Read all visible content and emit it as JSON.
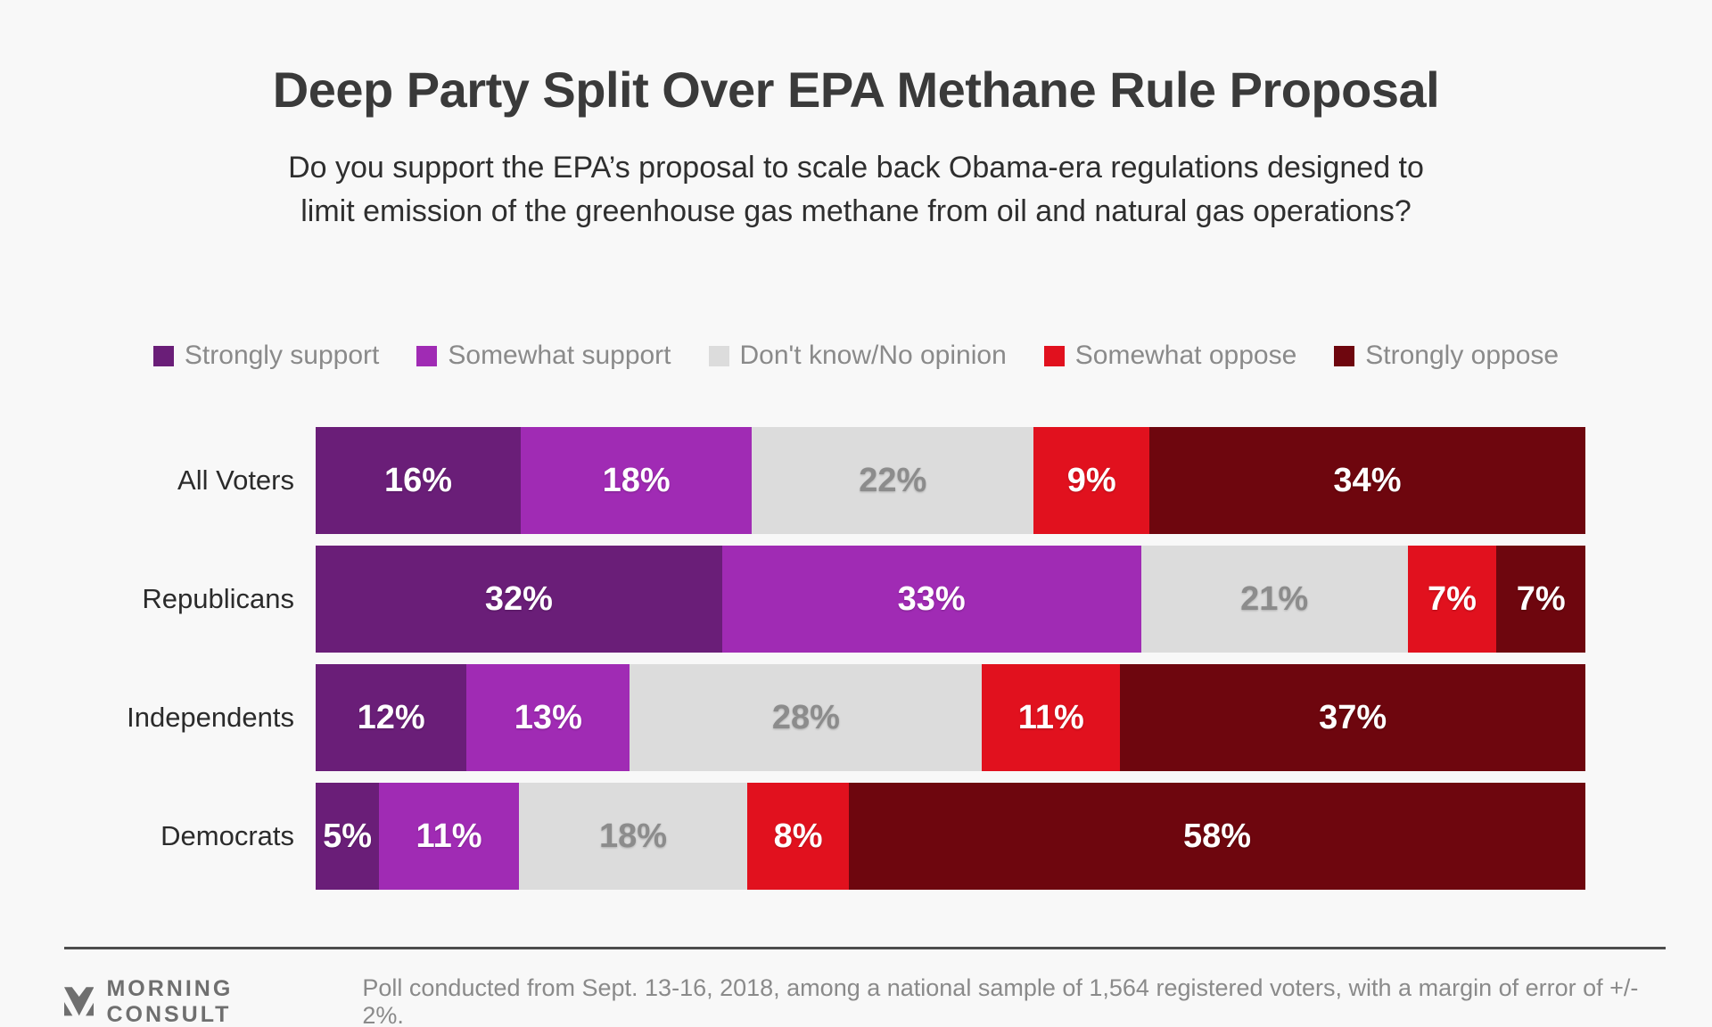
{
  "title": "Deep Party Split Over EPA Methane Rule Proposal",
  "subtitle_line1": "Do you support the EPA’s proposal to scale back Obama-era regulations designed to",
  "subtitle_line2": "limit emission of the greenhouse gas methane from oil and natural gas operations?",
  "chart_data": {
    "type": "bar",
    "stacked": true,
    "orientation": "horizontal",
    "title": "Deep Party Split Over EPA Methane Rule Proposal",
    "value_suffix": "%",
    "axis_range_percent": [
      0,
      100
    ],
    "grid": false,
    "legend_position": "top",
    "categories": [
      "All Voters",
      "Republicans",
      "Independents",
      "Democrats"
    ],
    "series": [
      {
        "name": "Strongly support",
        "color": "#6A1E78",
        "text_color": "#ffffff",
        "values": [
          16,
          32,
          12,
          5
        ]
      },
      {
        "name": "Somewhat support",
        "color": "#A02BB4",
        "text_color": "#ffffff",
        "values": [
          18,
          33,
          13,
          11
        ]
      },
      {
        "name": "Don't know/No opinion",
        "color": "#DCDCDC",
        "text_color": "#8c8c8c",
        "values": [
          22,
          21,
          28,
          18
        ]
      },
      {
        "name": "Somewhat oppose",
        "color": "#E1111E",
        "text_color": "#ffffff",
        "values": [
          9,
          7,
          11,
          8
        ]
      },
      {
        "name": "Strongly oppose",
        "color": "#6E060E",
        "text_color": "#ffffff",
        "values": [
          34,
          7,
          37,
          58
        ]
      }
    ]
  },
  "footer": {
    "brand": "MORNING CONSULT",
    "logo_icon": "morning-consult-logo",
    "note": "Poll conducted from Sept. 13-16, 2018, among a national sample of 1,564 registered voters, with a margin of error of +/- 2%."
  },
  "colors": {
    "background": "#f8f8f8",
    "title_text": "#3a3a3a",
    "subtitle_text": "#2e2e2e",
    "legend_text": "#8a8a8a",
    "row_label_text": "#2b2b2b",
    "divider": "#4d4d4d",
    "brand_gray": "#6f6f6f",
    "footnote_text": "#8a8a8a"
  }
}
